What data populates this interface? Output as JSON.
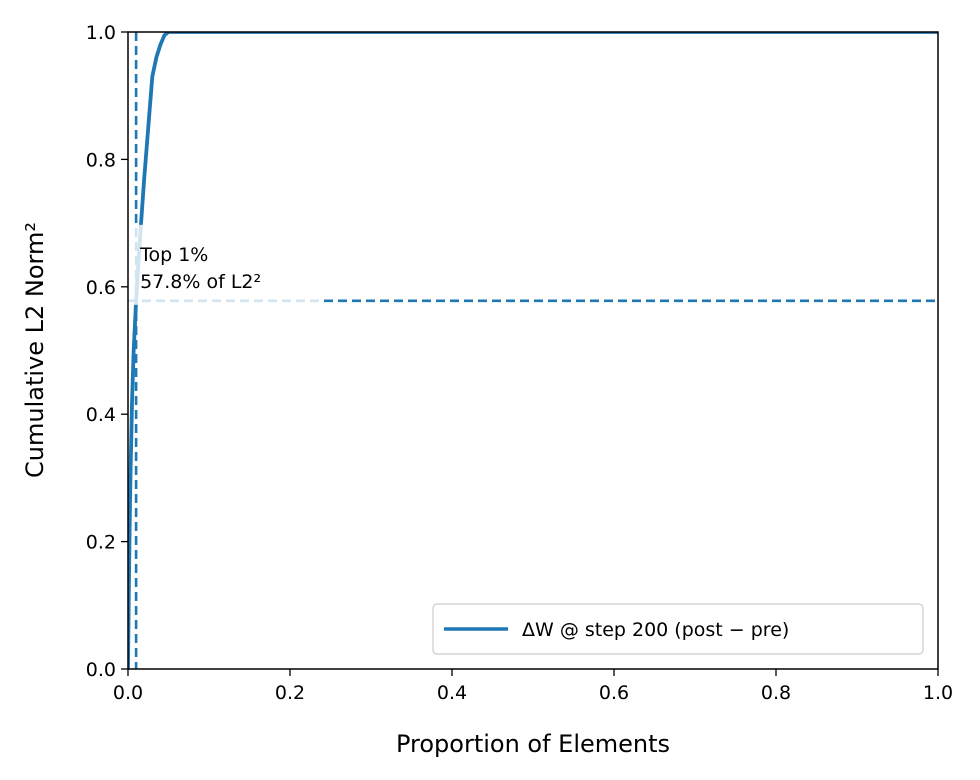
{
  "chart_data": {
    "type": "line",
    "xlabel": "Proportion of Elements",
    "ylabel": "Cumulative L2 Norm²",
    "xlim": [
      0,
      1
    ],
    "ylim": [
      0,
      1
    ],
    "x_ticks": [
      0.0,
      0.2,
      0.4,
      0.6,
      0.8,
      1.0
    ],
    "y_ticks": [
      0.0,
      0.2,
      0.4,
      0.6,
      0.8,
      1.0
    ],
    "x_tick_labels": [
      "0.0",
      "0.2",
      "0.4",
      "0.6",
      "0.8",
      "1.0"
    ],
    "y_tick_labels": [
      "0.0",
      "0.2",
      "0.4",
      "0.6",
      "0.8",
      "1.0"
    ],
    "grid": false,
    "legend_position": "lower-right",
    "series": [
      {
        "name": "ΔW @ step 200 (post − pre)",
        "color": "#1f77b4",
        "x": [
          0.0,
          0.001,
          0.002,
          0.003,
          0.005,
          0.007,
          0.01,
          0.015,
          0.02,
          0.025,
          0.03,
          0.035,
          0.04,
          0.045,
          0.05,
          0.055,
          0.06,
          0.1,
          0.2,
          0.4,
          0.6,
          0.8,
          1.0
        ],
        "y": [
          0.0,
          0.12,
          0.22,
          0.3,
          0.42,
          0.5,
          0.578,
          0.68,
          0.77,
          0.85,
          0.93,
          0.96,
          0.98,
          0.995,
          1.0,
          1.0,
          1.0,
          1.0,
          1.0,
          1.0,
          1.0,
          1.0,
          1.0
        ]
      }
    ],
    "reference_lines": {
      "vertical_x": 0.01,
      "horizontal_y": 0.578,
      "color": "#1f77b4",
      "style": "dashed"
    },
    "annotation": {
      "line1": "Top 1%",
      "line2": "57.8% of L2²"
    }
  }
}
